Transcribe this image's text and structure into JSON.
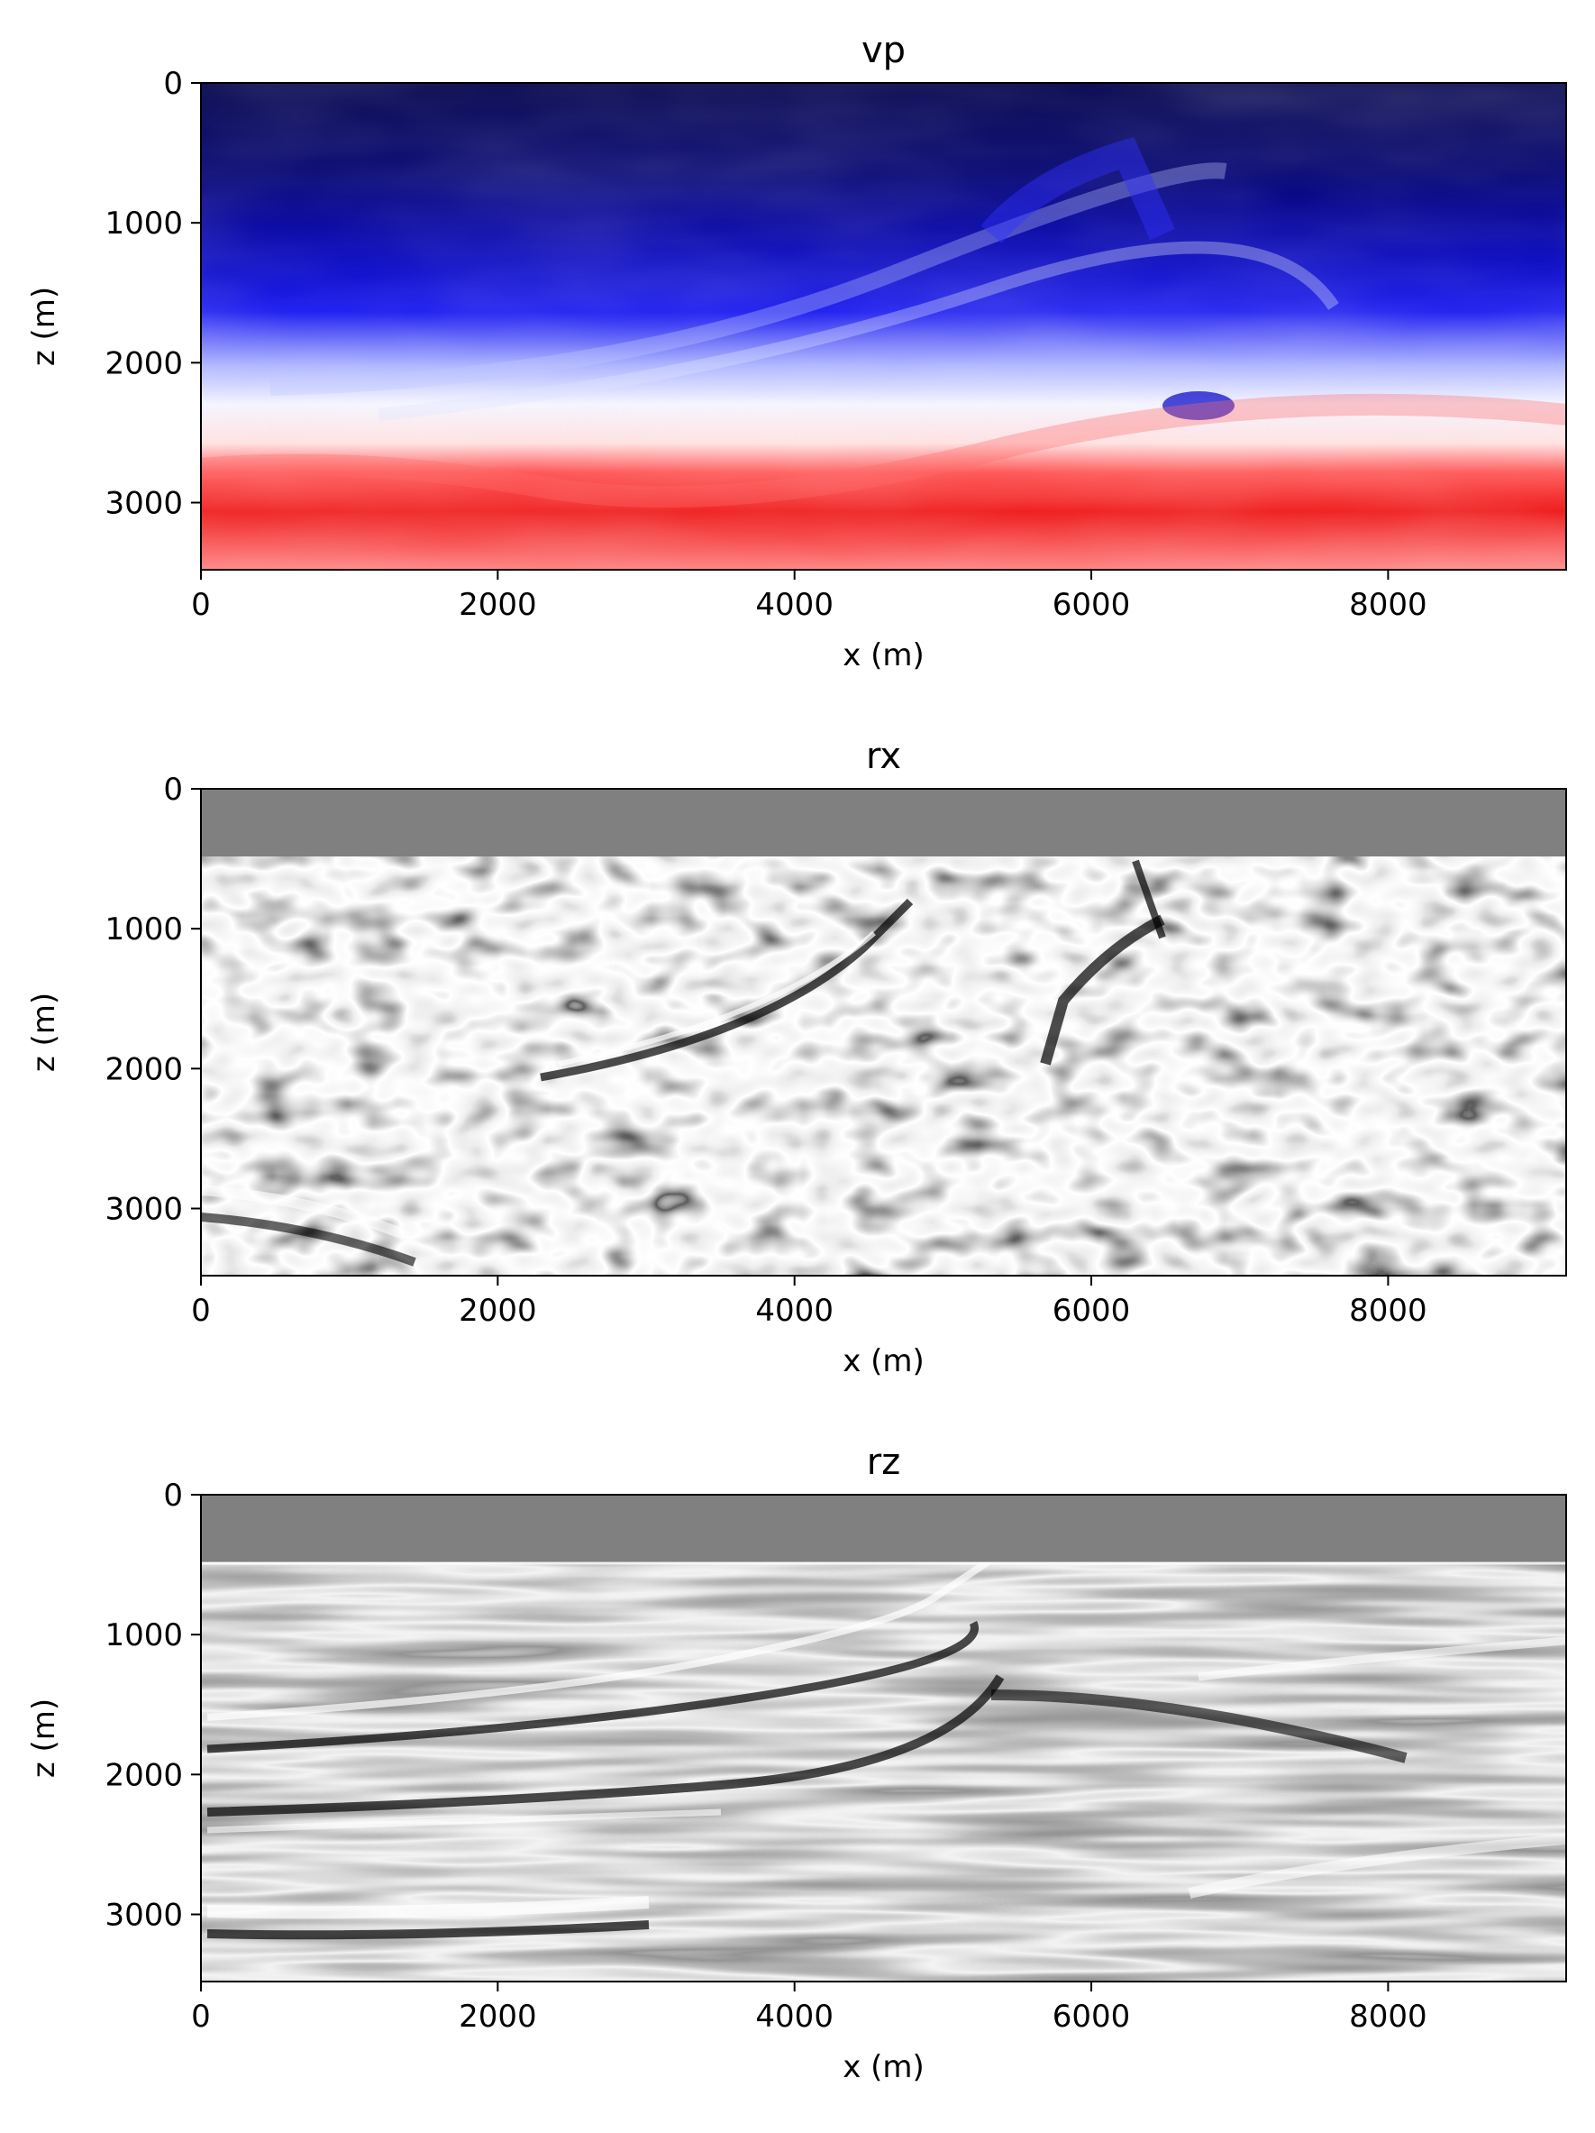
{
  "chart_data": [
    {
      "type": "heatmap",
      "title": "vp",
      "xlabel": "x (m)",
      "ylabel": "z (m)",
      "xlim": [
        0,
        9200
      ],
      "ylim": [
        3480,
        0
      ],
      "xticks": [
        "0",
        "2000",
        "4000",
        "6000",
        "8000"
      ],
      "yticks": [
        "0",
        "1000",
        "2000",
        "3000"
      ],
      "colormap": "seismic (dark blue - white - red)",
      "colors": [
        "#00004d",
        "#0000ff",
        "#ffffff",
        "#ff0000"
      ]
    },
    {
      "type": "heatmap",
      "title": "rx",
      "xlabel": "x (m)",
      "ylabel": "z (m)",
      "xlim": [
        0,
        9200
      ],
      "ylim": [
        3480,
        0
      ],
      "xticks": [
        "0",
        "2000",
        "4000",
        "6000",
        "8000"
      ],
      "yticks": [
        "0",
        "1000",
        "2000",
        "3000"
      ],
      "colormap": "gray",
      "masked_top_depth": 480,
      "colors": [
        "#000000",
        "#808080",
        "#ffffff"
      ]
    },
    {
      "type": "heatmap",
      "title": "rz",
      "xlabel": "x (m)",
      "ylabel": "z (m)",
      "xlim": [
        0,
        9200
      ],
      "ylim": [
        3480,
        0
      ],
      "xticks": [
        "0",
        "2000",
        "4000",
        "6000",
        "8000"
      ],
      "yticks": [
        "0",
        "1000",
        "2000",
        "3000"
      ],
      "colormap": "gray",
      "masked_top_depth": 480,
      "colors": [
        "#000000",
        "#808080",
        "#ffffff"
      ]
    }
  ]
}
